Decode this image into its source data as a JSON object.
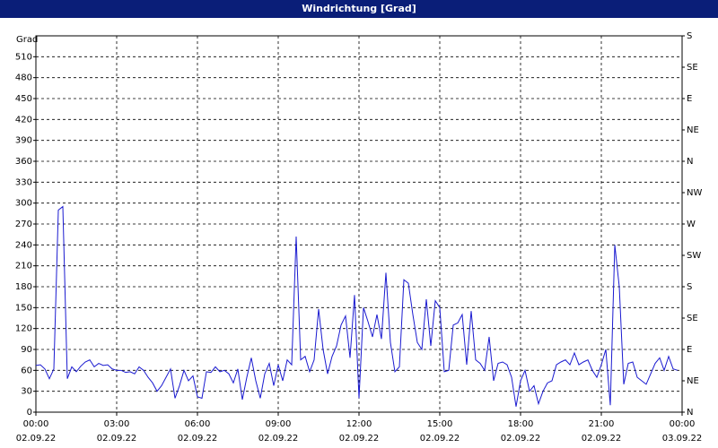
{
  "chart_data": {
    "type": "line",
    "title": "Windrichtung [Grad]",
    "ylabel": "Grad",
    "grid": true,
    "x": [
      0,
      10,
      20,
      30,
      40,
      50,
      60,
      70,
      80,
      90,
      100,
      110,
      120,
      130,
      140,
      150,
      160,
      170,
      180,
      190,
      200,
      210,
      220,
      230,
      240,
      250,
      260,
      270,
      280,
      290,
      300,
      310,
      320,
      330,
      340,
      350,
      360,
      370,
      380,
      390,
      400,
      410,
      420,
      430,
      440,
      450,
      460,
      470,
      480,
      490,
      500,
      510,
      520,
      530,
      540,
      550,
      560,
      570,
      580,
      590,
      600,
      610,
      620,
      630,
      640,
      650,
      660,
      670,
      680,
      690,
      700,
      710,
      720,
      730,
      740,
      750,
      760,
      770,
      780,
      790,
      800,
      810,
      820,
      830,
      840,
      850,
      860,
      870,
      880,
      890,
      900,
      910,
      920,
      930,
      940,
      950,
      960,
      970,
      980,
      990,
      1000,
      1010,
      1020,
      1030,
      1040,
      1050,
      1060,
      1070,
      1080,
      1090,
      1100,
      1110,
      1120,
      1130,
      1140,
      1150,
      1160,
      1170,
      1180,
      1190,
      1200,
      1210,
      1220,
      1230,
      1240,
      1250,
      1260,
      1270,
      1280,
      1290,
      1300,
      1310,
      1320,
      1330,
      1340,
      1350,
      1360,
      1370,
      1380,
      1390,
      1400,
      1410,
      1420,
      1430
    ],
    "series": [
      {
        "color": "#1a1ad0",
        "values": [
          67,
          68,
          62,
          48,
          62,
          290,
          295,
          48,
          65,
          58,
          66,
          72,
          75,
          65,
          70,
          67,
          68,
          62,
          60,
          60,
          57,
          58,
          55,
          65,
          60,
          50,
          42,
          30,
          38,
          50,
          62,
          20,
          38,
          60,
          45,
          52,
          22,
          20,
          58,
          57,
          65,
          58,
          60,
          55,
          42,
          62,
          18,
          50,
          78,
          45,
          20,
          55,
          70,
          38,
          68,
          45,
          75,
          68,
          252,
          75,
          80,
          58,
          75,
          148,
          90,
          55,
          80,
          95,
          125,
          138,
          78,
          168,
          20,
          150,
          130,
          108,
          140,
          105,
          200,
          100,
          58,
          65,
          190,
          185,
          140,
          100,
          90,
          162,
          95,
          160,
          150,
          58,
          60,
          125,
          128,
          140,
          68,
          145,
          75,
          70,
          60,
          108,
          45,
          70,
          72,
          68,
          50,
          8,
          45,
          60,
          30,
          38,
          12,
          30,
          42,
          45,
          68,
          72,
          75,
          68,
          85,
          68,
          72,
          75,
          60,
          50,
          68,
          90,
          10,
          240,
          180,
          40,
          70,
          72,
          50,
          45,
          40,
          55,
          70,
          78,
          60,
          80,
          62,
          60
        ]
      }
    ],
    "xlim": [
      0,
      1440
    ],
    "xticks": [
      {
        "value": 0,
        "label": "00:00\n02.09.22"
      },
      {
        "value": 180,
        "label": "03:00\n02.09.22"
      },
      {
        "value": 360,
        "label": "06:00\n02.09.22"
      },
      {
        "value": 540,
        "label": "09:00\n02.09.22"
      },
      {
        "value": 720,
        "label": "12:00\n02.09.22"
      },
      {
        "value": 900,
        "label": "15:00\n02.09.22"
      },
      {
        "value": 1080,
        "label": "18:00\n02.09.22"
      },
      {
        "value": 1260,
        "label": "21:00\n02.09.22"
      },
      {
        "value": 1440,
        "label": "00:00\n03.09.22"
      }
    ],
    "ylim": [
      0,
      540
    ],
    "yticks": [
      0,
      30,
      60,
      90,
      120,
      150,
      180,
      210,
      240,
      270,
      300,
      330,
      360,
      390,
      420,
      450,
      480,
      510
    ],
    "y2lim": [
      0,
      540
    ],
    "y2ticks": [
      {
        "value": 0,
        "label": "N"
      },
      {
        "value": 45,
        "label": "NE"
      },
      {
        "value": 90,
        "label": "E"
      },
      {
        "value": 135,
        "label": "SE"
      },
      {
        "value": 180,
        "label": "S"
      },
      {
        "value": 225,
        "label": "SW"
      },
      {
        "value": 270,
        "label": "W"
      },
      {
        "value": 315,
        "label": "NW"
      },
      {
        "value": 360,
        "label": "N"
      },
      {
        "value": 405,
        "label": "NE"
      },
      {
        "value": 450,
        "label": "E"
      },
      {
        "value": 495,
        "label": "SE"
      },
      {
        "value": 540,
        "label": "S"
      }
    ]
  }
}
